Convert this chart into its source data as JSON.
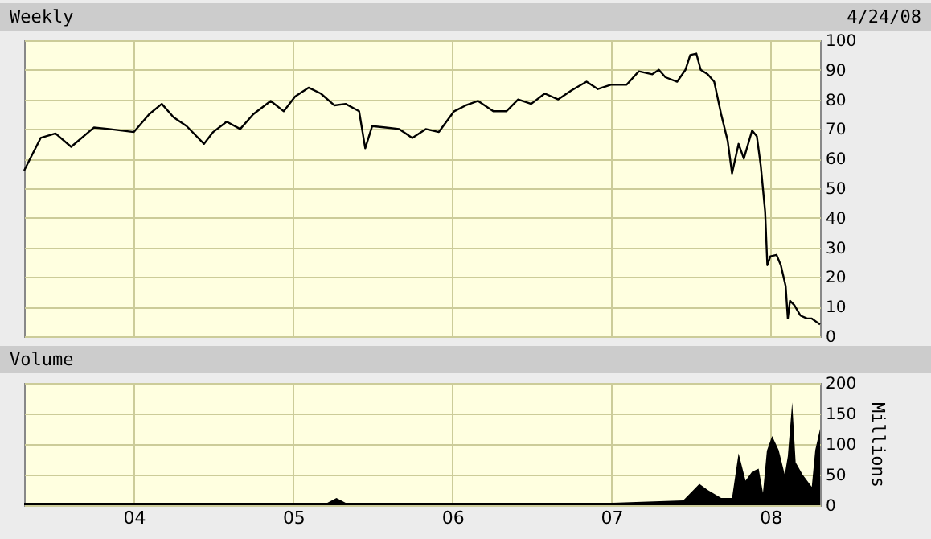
{
  "chart_data": [
    {
      "type": "line",
      "title": "Weekly",
      "annotations": [
        "4/24/08"
      ],
      "x": [
        "2003-04-24",
        "2003-06-01",
        "2003-07-05",
        "2003-08-10",
        "2003-10-01",
        "2003-11-05",
        "2004-01-01",
        "2004-02-05",
        "2004-03-05",
        "2004-04-01",
        "2004-05-01",
        "2004-06-10",
        "2004-07-01",
        "2004-08-01",
        "2004-09-01",
        "2004-10-01",
        "2004-11-10",
        "2004-12-10",
        "2005-01-05",
        "2005-02-05",
        "2005-03-05",
        "2005-04-05",
        "2005-05-01",
        "2005-06-01",
        "2005-06-15",
        "2005-07-01",
        "2005-08-01",
        "2005-09-01",
        "2005-10-01",
        "2005-11-01",
        "2005-12-01",
        "2006-01-05",
        "2006-02-01",
        "2006-03-01",
        "2006-04-05",
        "2006-05-05",
        "2006-06-01",
        "2006-07-01",
        "2006-08-01",
        "2006-09-01",
        "2006-10-01",
        "2006-11-05",
        "2006-12-01",
        "2007-01-01",
        "2007-02-05",
        "2007-03-05",
        "2007-04-05",
        "2007-04-20",
        "2007-05-05",
        "2007-06-01",
        "2007-06-20",
        "2007-07-01",
        "2007-07-15",
        "2007-07-25",
        "2007-08-10",
        "2007-08-25",
        "2007-09-10",
        "2007-09-25",
        "2007-10-05",
        "2007-10-20",
        "2007-11-01",
        "2007-11-20",
        "2007-12-01",
        "2007-12-10",
        "2007-12-20",
        "2007-12-25",
        "2008-01-01",
        "2008-01-15",
        "2008-01-25",
        "2008-02-05",
        "2008-02-10",
        "2008-02-15",
        "2008-02-25",
        "2008-03-10",
        "2008-03-25",
        "2008-04-05",
        "2008-04-24"
      ],
      "series": [
        {
          "color": "#000000",
          "values": [
            56,
            67,
            68.5,
            64,
            70.5,
            70,
            69,
            75,
            78.5,
            74,
            71,
            65,
            69,
            72.5,
            70,
            75,
            79.5,
            76,
            81,
            84,
            82,
            78,
            78.5,
            76,
            63.5,
            71,
            70.5,
            70,
            67,
            70,
            69,
            76,
            78,
            79.5,
            76,
            76,
            80,
            78.5,
            82,
            80,
            83,
            86,
            83.5,
            85,
            85,
            89.5,
            88.5,
            90,
            87.5,
            86,
            90,
            95,
            95.5,
            90,
            88.5,
            86,
            75,
            66,
            55,
            65,
            60,
            69.5,
            67.5,
            57.5,
            42,
            24,
            27,
            27.5,
            24,
            17,
            6,
            12,
            10.5,
            7,
            6,
            6,
            4
          ]
        }
      ],
      "xlim": [
        "2003-04-24",
        "2008-04-24"
      ],
      "xticks": [
        {
          "value": "2004-01-01",
          "label": null
        },
        {
          "value": "2005-01-01",
          "label": null
        },
        {
          "value": "2006-01-01",
          "label": null
        },
        {
          "value": "2007-01-01",
          "label": null
        },
        {
          "value": "2008-01-01",
          "label": null
        }
      ],
      "ylim": [
        0,
        100
      ],
      "yticks": [
        0,
        10,
        20,
        30,
        40,
        50,
        60,
        70,
        80,
        90,
        100
      ],
      "grid": true,
      "tick_labels": "y"
    },
    {
      "type": "area",
      "title": "Volume",
      "ylabel": "Millions",
      "x": [
        "2003-04-24",
        "2004-01-01",
        "2005-01-01",
        "2005-03-20",
        "2005-04-10",
        "2005-05-01",
        "2006-01-01",
        "2007-01-01",
        "2007-06-15",
        "2007-07-22",
        "2007-08-10",
        "2007-09-10",
        "2007-10-05",
        "2007-10-20",
        "2007-11-05",
        "2007-11-20",
        "2007-12-05",
        "2007-12-15",
        "2007-12-24",
        "2008-01-05",
        "2008-01-20",
        "2008-02-03",
        "2008-02-10",
        "2008-02-20",
        "2008-02-28",
        "2008-03-15",
        "2008-04-05",
        "2008-04-13",
        "2008-04-24"
      ],
      "series": [
        {
          "color": "#000000",
          "values": [
            4,
            4,
            4,
            4,
            12,
            4,
            4,
            4,
            8,
            35,
            25,
            12,
            12,
            85,
            40,
            55,
            60,
            20,
            89,
            113,
            90,
            50,
            80,
            168,
            70,
            50,
            30,
            90,
            125
          ]
        }
      ],
      "xlim": [
        "2003-04-24",
        "2008-04-24"
      ],
      "xticks": [
        {
          "value": "2004-01-01",
          "label": "04"
        },
        {
          "value": "2005-01-01",
          "label": "05"
        },
        {
          "value": "2006-01-01",
          "label": "06"
        },
        {
          "value": "2007-01-01",
          "label": "07"
        },
        {
          "value": "2008-01-01",
          "label": "08"
        }
      ],
      "ylim": [
        0,
        200
      ],
      "yticks": [
        0,
        50,
        100,
        150,
        200
      ],
      "grid": true
    }
  ]
}
